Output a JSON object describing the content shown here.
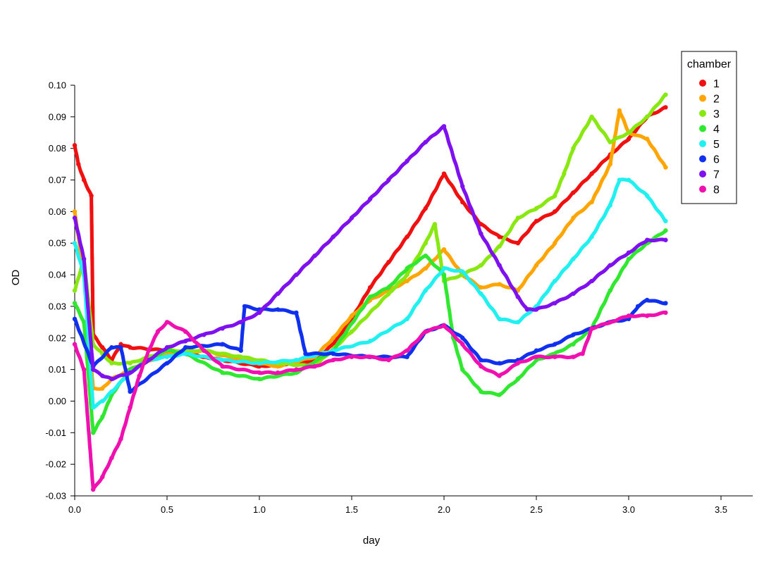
{
  "chart_data": {
    "type": "scatter",
    "title": "",
    "xlabel": "day",
    "ylabel": "OD",
    "xlim": [
      0,
      3.65
    ],
    "ylim": [
      -0.03,
      0.1
    ],
    "x_ticks": [
      "0.0",
      "0.5",
      "1.0",
      "1.5",
      "2.0",
      "2.5",
      "3.0",
      "3.5"
    ],
    "x_tick_values": [
      0,
      0.5,
      1.0,
      1.5,
      2.0,
      2.5,
      3.0,
      3.5
    ],
    "y_ticks": [
      "-0.03",
      "-0.02",
      "-0.01",
      "0.00",
      "0.01",
      "0.02",
      "0.03",
      "0.04",
      "0.05",
      "0.06",
      "0.07",
      "0.08",
      "0.09",
      "0.10"
    ],
    "y_tick_values": [
      -0.03,
      -0.02,
      -0.01,
      0.0,
      0.01,
      0.02,
      0.03,
      0.04,
      0.05,
      0.06,
      0.07,
      0.08,
      0.09,
      0.1
    ],
    "grid": false,
    "legend": {
      "title": "chamber",
      "position": "top-right"
    },
    "series": [
      {
        "name": "1",
        "color": "#f01010",
        "x": [
          0.0,
          0.02,
          0.05,
          0.09,
          0.1,
          0.15,
          0.2,
          0.25,
          0.3,
          0.5,
          0.7,
          1.0,
          1.2,
          1.3,
          1.4,
          1.5,
          1.6,
          1.7,
          1.8,
          1.9,
          2.0,
          2.1,
          2.2,
          2.3,
          2.4,
          2.5,
          2.6,
          2.7,
          2.8,
          2.9,
          3.0,
          3.1,
          3.2
        ],
        "y": [
          0.081,
          0.075,
          0.07,
          0.065,
          0.021,
          0.017,
          0.013,
          0.018,
          0.017,
          0.016,
          0.014,
          0.011,
          0.012,
          0.013,
          0.018,
          0.026,
          0.036,
          0.044,
          0.052,
          0.061,
          0.072,
          0.063,
          0.056,
          0.052,
          0.05,
          0.057,
          0.06,
          0.066,
          0.072,
          0.078,
          0.083,
          0.09,
          0.093
        ]
      },
      {
        "name": "2",
        "color": "#ffa500",
        "x": [
          0.0,
          0.05,
          0.1,
          0.15,
          0.2,
          0.3,
          0.5,
          0.7,
          0.9,
          1.1,
          1.3,
          1.4,
          1.5,
          1.6,
          1.7,
          1.8,
          1.9,
          2.0,
          2.1,
          2.2,
          2.3,
          2.4,
          2.5,
          2.6,
          2.7,
          2.8,
          2.9,
          2.95,
          3.0,
          3.1,
          3.2
        ],
        "y": [
          0.06,
          0.04,
          0.004,
          0.004,
          0.007,
          0.01,
          0.015,
          0.016,
          0.013,
          0.011,
          0.014,
          0.02,
          0.027,
          0.032,
          0.035,
          0.038,
          0.042,
          0.048,
          0.04,
          0.036,
          0.037,
          0.035,
          0.043,
          0.05,
          0.058,
          0.063,
          0.075,
          0.092,
          0.085,
          0.083,
          0.074
        ]
      },
      {
        "name": "3",
        "color": "#88e810",
        "x": [
          0.0,
          0.05,
          0.1,
          0.15,
          0.2,
          0.3,
          0.5,
          0.7,
          0.9,
          1.1,
          1.3,
          1.5,
          1.7,
          1.8,
          1.9,
          1.95,
          2.0,
          2.1,
          2.2,
          2.3,
          2.4,
          2.5,
          2.6,
          2.65,
          2.7,
          2.8,
          2.9,
          3.0,
          3.1,
          3.2
        ],
        "y": [
          0.035,
          0.045,
          0.018,
          0.015,
          0.012,
          0.012,
          0.016,
          0.016,
          0.014,
          0.012,
          0.011,
          0.022,
          0.034,
          0.04,
          0.05,
          0.056,
          0.038,
          0.04,
          0.043,
          0.049,
          0.058,
          0.061,
          0.065,
          0.072,
          0.08,
          0.09,
          0.082,
          0.085,
          0.09,
          0.097
        ]
      },
      {
        "name": "4",
        "color": "#30e830",
        "x": [
          0.0,
          0.05,
          0.1,
          0.15,
          0.2,
          0.3,
          0.4,
          0.5,
          0.6,
          0.8,
          1.0,
          1.2,
          1.4,
          1.6,
          1.7,
          1.8,
          1.9,
          2.0,
          2.05,
          2.1,
          2.2,
          2.3,
          2.4,
          2.5,
          2.6,
          2.7,
          2.8,
          2.9,
          3.0,
          3.1,
          3.2
        ],
        "y": [
          0.031,
          0.025,
          -0.01,
          -0.005,
          0.002,
          0.01,
          0.013,
          0.016,
          0.015,
          0.009,
          0.007,
          0.009,
          0.016,
          0.033,
          0.036,
          0.042,
          0.046,
          0.04,
          0.02,
          0.01,
          0.003,
          0.002,
          0.007,
          0.013,
          0.015,
          0.018,
          0.023,
          0.035,
          0.045,
          0.05,
          0.054
        ]
      },
      {
        "name": "5",
        "color": "#20f0f0",
        "x": [
          0.0,
          0.05,
          0.1,
          0.15,
          0.2,
          0.3,
          0.4,
          0.5,
          0.6,
          0.8,
          1.0,
          1.2,
          1.4,
          1.6,
          1.8,
          1.9,
          2.0,
          2.1,
          2.2,
          2.3,
          2.4,
          2.5,
          2.6,
          2.7,
          2.8,
          2.9,
          2.95,
          3.0,
          3.1,
          3.2
        ],
        "y": [
          0.05,
          0.04,
          -0.002,
          0.0,
          0.003,
          0.009,
          0.013,
          0.014,
          0.015,
          0.013,
          0.012,
          0.013,
          0.016,
          0.019,
          0.026,
          0.035,
          0.042,
          0.041,
          0.034,
          0.026,
          0.025,
          0.03,
          0.038,
          0.045,
          0.052,
          0.062,
          0.07,
          0.07,
          0.065,
          0.057
        ]
      },
      {
        "name": "6",
        "color": "#1030f0",
        "x": [
          0.0,
          0.1,
          0.2,
          0.25,
          0.3,
          0.5,
          0.6,
          0.8,
          0.9,
          0.92,
          1.0,
          1.1,
          1.2,
          1.25,
          1.4,
          1.6,
          1.8,
          1.9,
          2.0,
          2.1,
          2.2,
          2.3,
          2.4,
          2.5,
          2.6,
          2.7,
          2.8,
          2.9,
          3.0,
          3.05,
          3.1,
          3.2
        ],
        "y": [
          0.026,
          0.011,
          0.017,
          0.017,
          0.003,
          0.012,
          0.017,
          0.018,
          0.016,
          0.03,
          0.029,
          0.029,
          0.028,
          0.015,
          0.015,
          0.014,
          0.014,
          0.022,
          0.024,
          0.02,
          0.013,
          0.012,
          0.013,
          0.016,
          0.018,
          0.021,
          0.023,
          0.025,
          0.026,
          0.03,
          0.032,
          0.031
        ]
      },
      {
        "name": "7",
        "color": "#7f10f0",
        "x": [
          0.0,
          0.05,
          0.1,
          0.15,
          0.2,
          0.3,
          0.4,
          0.5,
          0.6,
          0.7,
          0.8,
          0.9,
          1.0,
          1.1,
          1.2,
          1.3,
          1.4,
          1.5,
          1.6,
          1.7,
          1.8,
          1.9,
          2.0,
          2.1,
          2.2,
          2.3,
          2.4,
          2.45,
          2.5,
          2.6,
          2.7,
          2.8,
          2.9,
          3.0,
          3.1,
          3.2
        ],
        "y": [
          0.058,
          0.045,
          0.01,
          0.008,
          0.007,
          0.009,
          0.013,
          0.017,
          0.019,
          0.021,
          0.023,
          0.025,
          0.028,
          0.034,
          0.04,
          0.046,
          0.052,
          0.058,
          0.064,
          0.07,
          0.076,
          0.082,
          0.087,
          0.068,
          0.053,
          0.043,
          0.033,
          0.029,
          0.029,
          0.031,
          0.034,
          0.038,
          0.043,
          0.047,
          0.051,
          0.051
        ]
      },
      {
        "name": "8",
        "color": "#f010b0",
        "x": [
          0.0,
          0.05,
          0.1,
          0.15,
          0.2,
          0.25,
          0.3,
          0.35,
          0.4,
          0.45,
          0.5,
          0.6,
          0.7,
          0.8,
          1.0,
          1.1,
          1.2,
          1.3,
          1.4,
          1.5,
          1.6,
          1.7,
          1.8,
          1.9,
          2.0,
          2.1,
          2.2,
          2.3,
          2.4,
          2.5,
          2.6,
          2.7,
          2.75,
          2.8,
          2.9,
          3.0,
          3.1,
          3.2
        ],
        "y": [
          0.018,
          0.01,
          -0.028,
          -0.024,
          -0.018,
          -0.012,
          -0.002,
          0.008,
          0.016,
          0.022,
          0.025,
          0.022,
          0.016,
          0.011,
          0.009,
          0.009,
          0.01,
          0.011,
          0.013,
          0.014,
          0.014,
          0.013,
          0.016,
          0.022,
          0.024,
          0.018,
          0.011,
          0.008,
          0.012,
          0.014,
          0.014,
          0.014,
          0.015,
          0.023,
          0.025,
          0.027,
          0.027,
          0.028
        ]
      }
    ]
  }
}
